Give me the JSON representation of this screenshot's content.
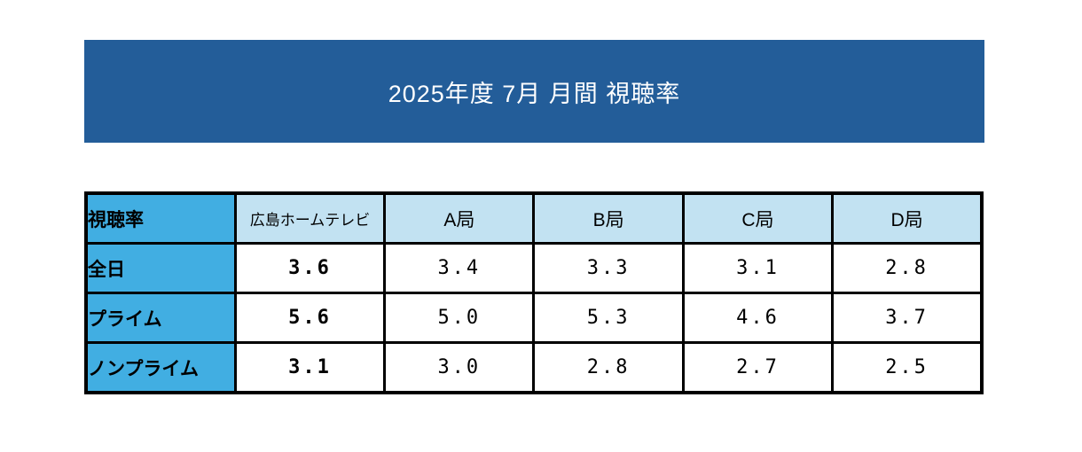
{
  "banner": {
    "title": "2025年度 7月 月間 視聴率",
    "bg_color": "#235D99",
    "text_color": "#FFFFFF"
  },
  "table": {
    "corner_label": "視聴率",
    "columns": [
      "広島ホームテレビ",
      "A局",
      "B局",
      "C局",
      "D局"
    ],
    "rows": [
      {
        "label": "全日",
        "values": [
          "3.6",
          "3.4",
          "3.3",
          "3.1",
          "2.8"
        ]
      },
      {
        "label": "プライム",
        "values": [
          "5.6",
          "5.0",
          "5.3",
          "4.6",
          "3.7"
        ]
      },
      {
        "label": "ノンプライム",
        "values": [
          "3.1",
          "3.0",
          "2.8",
          "2.7",
          "2.5"
        ]
      }
    ],
    "colors": {
      "label_bg": "#41AEE2",
      "header_bg": "#C2E2F2",
      "cell_bg": "#FFFFFF",
      "border": "#000000"
    }
  },
  "chart_data": {
    "type": "table",
    "title": "2025年度 7月 月間 視聴率",
    "columns": [
      "視聴率",
      "広島ホームテレビ",
      "A局",
      "B局",
      "C局",
      "D局"
    ],
    "rows": [
      [
        "全日",
        3.6,
        3.4,
        3.3,
        3.1,
        2.8
      ],
      [
        "プライム",
        5.6,
        5.0,
        5.3,
        4.6,
        3.7
      ],
      [
        "ノンプライム",
        3.1,
        3.0,
        2.8,
        2.7,
        2.5
      ]
    ],
    "notes": "Monthly TV audience ratings (%) for July, fiscal 2025; home station column (広島ホームテレビ) shown in bold"
  }
}
